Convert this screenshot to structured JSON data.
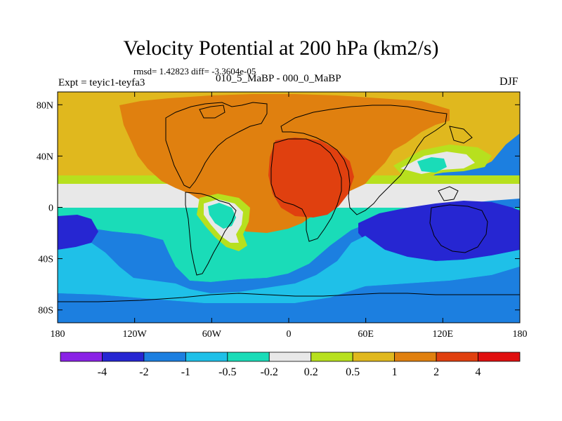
{
  "chart_data": {
    "type": "heatmap",
    "title": "Velocity Potential at 200 hPa (km2/s)",
    "stats_text": "rmsd= 1.42823 diff= -3.3604e-05",
    "subtitle_left": "Expt = teyic1-teyfa3",
    "subtitle_center": "010_5_MaBP - 000_0_MaBP",
    "subtitle_right": "DJF",
    "x_ticks": [
      {
        "value": -180,
        "label": "180"
      },
      {
        "value": -120,
        "label": "120W"
      },
      {
        "value": -60,
        "label": "60W"
      },
      {
        "value": 0,
        "label": "0"
      },
      {
        "value": 60,
        "label": "60E"
      },
      {
        "value": 120,
        "label": "120E"
      },
      {
        "value": 180,
        "label": "180"
      }
    ],
    "y_ticks": [
      {
        "value": 80,
        "label": "80N"
      },
      {
        "value": 40,
        "label": "40N"
      },
      {
        "value": 0,
        "label": "0"
      },
      {
        "value": -40,
        "label": "40S"
      },
      {
        "value": -80,
        "label": "80S"
      }
    ],
    "xlim": [
      -180,
      180
    ],
    "ylim": [
      -90,
      90
    ],
    "contour_levels": [
      -4,
      -2,
      -1,
      -0.5,
      -0.2,
      0.2,
      0.5,
      1,
      2,
      4
    ],
    "colorbar_labels": [
      "-4",
      "-2",
      "-1",
      "-0.5",
      "-0.2",
      "0.2",
      "0.5",
      "1",
      "2",
      "4"
    ],
    "colorbar_colors": [
      "#8a22e6",
      "#2626d2",
      "#1c7fe0",
      "#1fc0e8",
      "#1adcb8",
      "#e8e8e8",
      "#b7e01e",
      "#e0b81e",
      "#e0800f",
      "#e0400f",
      "#e00f0f"
    ],
    "field_regions": [
      {
        "name": "warm-north",
        "bin": 7
      },
      {
        "name": "strong-north",
        "bin": 8
      },
      {
        "name": "africa-max",
        "bin": 9
      },
      {
        "name": "transition-white",
        "bin": 5
      },
      {
        "name": "transition-green",
        "bin": 6
      },
      {
        "name": "transition-cyan",
        "bin": 4
      },
      {
        "name": "southern-ocean",
        "bin": 2
      },
      {
        "name": "south-pacific-min",
        "bin": 1
      },
      {
        "name": "australia-min",
        "bin": 1
      }
    ]
  }
}
